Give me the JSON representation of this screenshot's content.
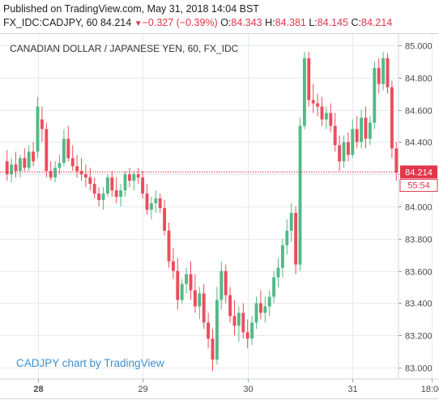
{
  "header": {
    "published": "Published on TradingView.com, May 31, 2018 14:04 BST",
    "symbol": "FX_IDC:CADJPY, 60",
    "last": "84.214",
    "change_arrow": "▼",
    "change": "−0.327 (−0.39%)",
    "o_label": "O:",
    "o": "84.343",
    "h_label": "H:",
    "h": "84.381",
    "l_label": "L:",
    "l": "84.145",
    "c_label": "C:",
    "c": "84.214"
  },
  "colors": {
    "up": "#53b987",
    "down": "#eb4d5c",
    "price_tag": "#e0374a",
    "axis_text": "#4a4a4a",
    "grid": "#e6e9ee"
  },
  "watermark": "CADJPY chart by TradingView",
  "price_tag": {
    "price": "84.214",
    "countdown": "55:54"
  },
  "chart_data": {
    "type": "candlestick",
    "title": "CANADIAN DOLLAR / JAPANESE YEN, 60, FX_IDC",
    "ylim": [
      82.93,
      85.07
    ],
    "y_ticks": [
      "85.000",
      "84.800",
      "84.600",
      "84.400",
      "84.200",
      "84.000",
      "83.800",
      "83.600",
      "83.400",
      "83.200",
      "83.000"
    ],
    "x_ticks": [
      {
        "label": "28",
        "bold": true,
        "at": 7
      },
      {
        "label": "29",
        "at": 31
      },
      {
        "label": "30",
        "at": 55
      },
      {
        "label": "31",
        "at": 79
      },
      {
        "label": "18:00",
        "at": 97
      }
    ],
    "last_price": 84.214,
    "candles": [
      [
        84.28,
        84.35,
        84.16,
        84.2
      ],
      [
        84.2,
        84.3,
        84.15,
        84.26
      ],
      [
        84.26,
        84.34,
        84.18,
        84.22
      ],
      [
        84.22,
        84.32,
        84.18,
        84.3
      ],
      [
        84.3,
        84.36,
        84.22,
        84.24
      ],
      [
        84.24,
        84.38,
        84.22,
        84.34
      ],
      [
        84.34,
        84.4,
        84.25,
        84.28
      ],
      [
        84.34,
        84.68,
        84.3,
        84.62
      ],
      [
        84.54,
        84.62,
        84.4,
        84.48
      ],
      [
        84.48,
        84.52,
        84.18,
        84.22
      ],
      [
        84.22,
        84.28,
        84.16,
        84.18
      ],
      [
        84.18,
        84.28,
        84.15,
        84.24
      ],
      [
        84.24,
        84.32,
        84.2,
        84.27
      ],
      [
        84.27,
        84.48,
        84.25,
        84.42
      ],
      [
        84.42,
        84.5,
        84.28,
        84.3
      ],
      [
        84.3,
        84.38,
        84.22,
        84.25
      ],
      [
        84.25,
        84.32,
        84.18,
        84.22
      ],
      [
        84.22,
        84.3,
        84.16,
        84.2
      ],
      [
        84.2,
        84.26,
        84.12,
        84.18
      ],
      [
        84.18,
        84.24,
        84.1,
        84.14
      ],
      [
        84.14,
        84.18,
        84.05,
        84.08
      ],
      [
        84.08,
        84.12,
        84.0,
        84.04
      ],
      [
        84.04,
        84.12,
        83.98,
        84.08
      ],
      [
        84.08,
        84.2,
        84.06,
        84.18
      ],
      [
        84.18,
        84.22,
        84.06,
        84.1
      ],
      [
        84.1,
        84.18,
        84.02,
        84.06
      ],
      [
        84.06,
        84.14,
        84.0,
        84.1
      ],
      [
        84.1,
        84.22,
        84.06,
        84.2
      ],
      [
        84.2,
        84.24,
        84.12,
        84.16
      ],
      [
        84.16,
        84.22,
        84.1,
        84.2
      ],
      [
        84.2,
        84.24,
        84.14,
        84.18
      ],
      [
        84.18,
        84.22,
        84.05,
        84.08
      ],
      [
        84.08,
        84.14,
        83.95,
        83.98
      ],
      [
        83.98,
        84.06,
        83.92,
        84.02
      ],
      [
        84.02,
        84.1,
        83.96,
        84.05
      ],
      [
        84.05,
        84.08,
        83.96,
        83.99
      ],
      [
        83.99,
        84.04,
        83.82,
        83.85
      ],
      [
        83.85,
        83.9,
        83.62,
        83.66
      ],
      [
        83.66,
        83.74,
        83.55,
        83.6
      ],
      [
        83.6,
        83.68,
        83.36,
        83.42
      ],
      [
        83.42,
        83.55,
        83.4,
        83.52
      ],
      [
        83.52,
        83.62,
        83.46,
        83.58
      ],
      [
        83.58,
        83.66,
        83.42,
        83.48
      ],
      [
        83.48,
        83.58,
        83.34,
        83.38
      ],
      [
        83.38,
        83.5,
        83.3,
        83.46
      ],
      [
        83.46,
        83.52,
        83.24,
        83.28
      ],
      [
        83.28,
        83.34,
        83.12,
        83.18
      ],
      [
        83.18,
        83.24,
        82.98,
        83.05
      ],
      [
        83.05,
        83.5,
        83.02,
        83.42
      ],
      [
        83.42,
        83.66,
        83.36,
        83.6
      ],
      [
        83.6,
        83.64,
        83.4,
        83.45
      ],
      [
        83.45,
        83.5,
        83.28,
        83.32
      ],
      [
        83.32,
        83.42,
        83.2,
        83.26
      ],
      [
        83.26,
        83.38,
        83.16,
        83.34
      ],
      [
        83.34,
        83.4,
        83.18,
        83.22
      ],
      [
        83.22,
        83.3,
        83.12,
        83.18
      ],
      [
        83.18,
        83.32,
        83.14,
        83.28
      ],
      [
        83.28,
        83.44,
        83.24,
        83.4
      ],
      [
        83.4,
        83.48,
        83.3,
        83.34
      ],
      [
        83.34,
        83.44,
        83.28,
        83.38
      ],
      [
        83.38,
        83.48,
        83.32,
        83.44
      ],
      [
        83.44,
        83.6,
        83.4,
        83.56
      ],
      [
        83.56,
        83.68,
        83.5,
        83.62
      ],
      [
        83.62,
        83.8,
        83.56,
        83.76
      ],
      [
        83.76,
        83.92,
        83.7,
        83.85
      ],
      [
        83.85,
        84.02,
        83.78,
        83.96
      ],
      [
        83.96,
        84.0,
        83.58,
        83.64
      ],
      [
        83.64,
        84.55,
        83.6,
        84.5
      ],
      [
        84.5,
        84.96,
        84.48,
        84.92
      ],
      [
        84.92,
        84.96,
        84.62,
        84.66
      ],
      [
        84.66,
        84.76,
        84.58,
        84.64
      ],
      [
        84.64,
        84.7,
        84.56,
        84.62
      ],
      [
        84.62,
        84.68,
        84.5,
        84.54
      ],
      [
        84.54,
        84.62,
        84.48,
        84.58
      ],
      [
        84.58,
        84.64,
        84.46,
        84.5
      ],
      [
        84.5,
        84.58,
        84.34,
        84.38
      ],
      [
        84.38,
        84.44,
        84.22,
        84.28
      ],
      [
        84.28,
        84.44,
        84.24,
        84.4
      ],
      [
        84.4,
        84.46,
        84.28,
        84.32
      ],
      [
        84.32,
        84.54,
        84.3,
        84.48
      ],
      [
        84.48,
        84.56,
        84.36,
        84.4
      ],
      [
        84.4,
        84.6,
        84.36,
        84.55
      ],
      [
        84.55,
        84.62,
        84.36,
        84.42
      ],
      [
        84.42,
        84.56,
        84.38,
        84.52
      ],
      [
        84.52,
        84.9,
        84.48,
        84.86
      ],
      [
        84.86,
        84.92,
        84.7,
        84.76
      ],
      [
        84.76,
        84.96,
        84.72,
        84.92
      ],
      [
        84.92,
        84.95,
        84.7,
        84.74
      ],
      [
        84.74,
        84.78,
        84.3,
        84.36
      ],
      [
        84.36,
        84.4,
        84.16,
        84.21
      ]
    ]
  }
}
